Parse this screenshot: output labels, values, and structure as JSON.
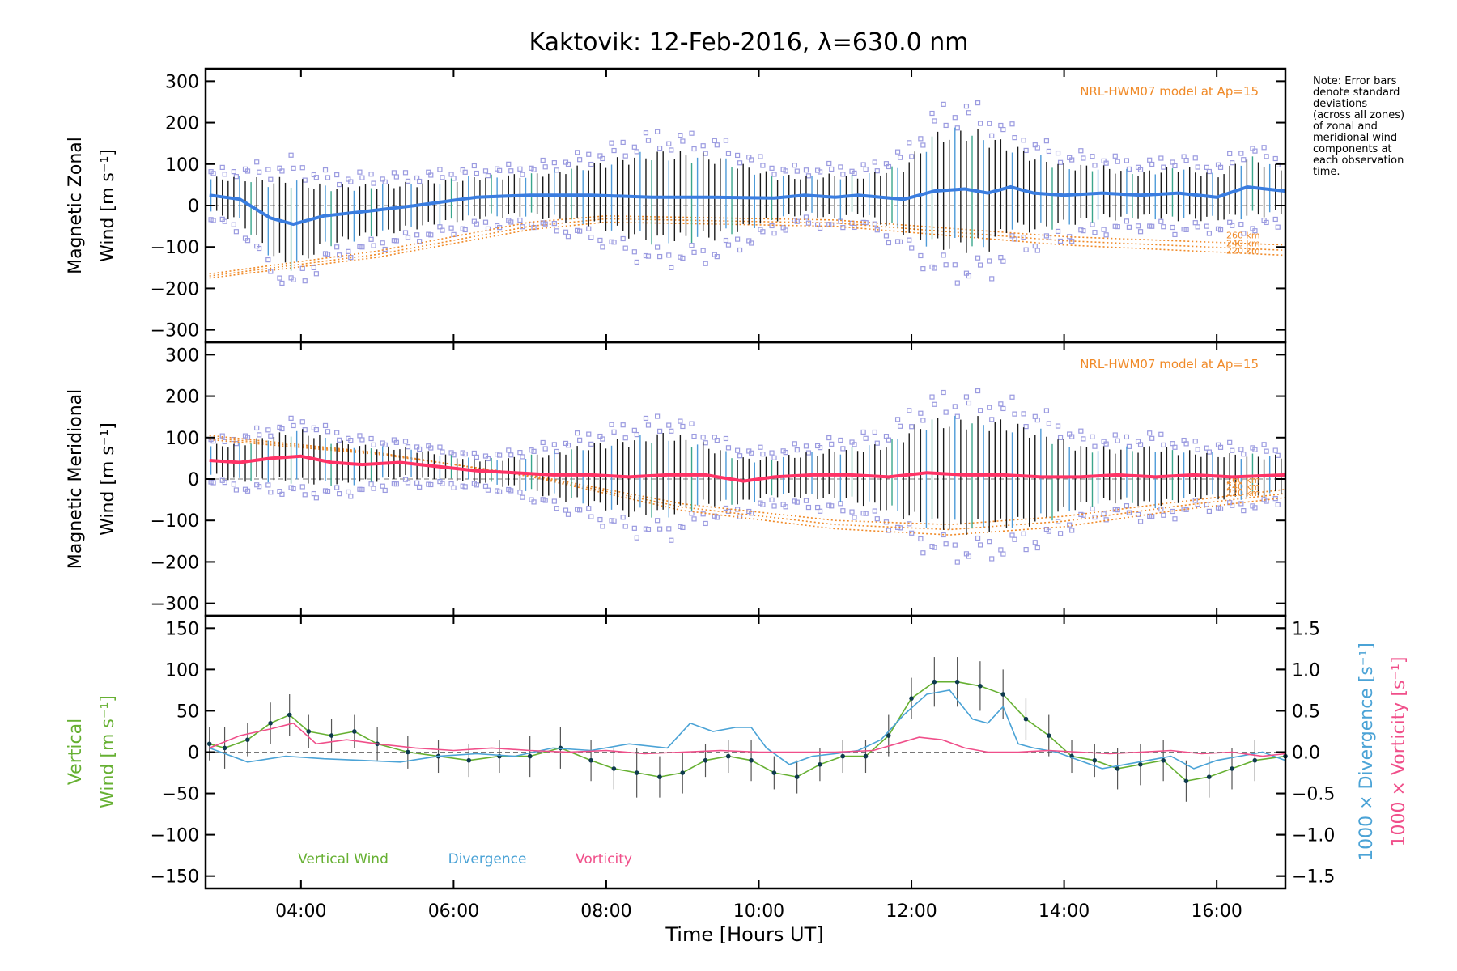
{
  "chart_data": {
    "type": "line",
    "title": "Kaktovik: 12-Feb-2016, λ=630.0 nm",
    "xlabel": "Time [Hours UT]",
    "x_ticks": [
      "04:00",
      "06:00",
      "08:00",
      "10:00",
      "12:00",
      "14:00",
      "16:00"
    ],
    "x_tick_hours": [
      4,
      6,
      8,
      10,
      12,
      14,
      16
    ],
    "xlim_hours": [
      2.75,
      16.9
    ],
    "note": [
      "Note: Error bars",
      "denote standard",
      "deviations",
      "(across all zones)",
      "of zonal and",
      "meridional wind",
      "components at",
      "each observation",
      "time."
    ],
    "colors": {
      "zonal_mean": "#3a7de0",
      "meridional_mean": "#ff3366",
      "vertical": "#66b032",
      "divergence": "#4ba3d6",
      "vorticity": "#f04f8a",
      "model": "#f08a28",
      "zone_points": "#9b9be0",
      "error_bars": "#1a1a1a"
    },
    "panels": [
      {
        "id": "zonal",
        "ylabel_line1": "Magnetic Zonal",
        "ylabel_line2": "Wind [m s⁻¹]",
        "ylim": [
          -330,
          330
        ],
        "y_ticks": [
          300,
          200,
          100,
          0,
          -100,
          -200,
          -300
        ],
        "model_label": "NRL-HWM07 model at Ap=15",
        "model_altitudes": [
          "260 km",
          "240 km",
          "220 km"
        ],
        "mean_series": {
          "x": [
            2.8,
            3.2,
            3.6,
            3.9,
            4.3,
            4.8,
            5.5,
            6.3,
            7.0,
            7.8,
            8.6,
            9.4,
            10.2,
            10.6,
            11.0,
            11.3,
            11.6,
            11.9,
            12.3,
            12.7,
            13.0,
            13.3,
            13.6,
            14.0,
            14.5,
            15.0,
            15.5,
            16.0,
            16.4,
            16.9
          ],
          "values": [
            25,
            15,
            -30,
            -45,
            -25,
            -15,
            0,
            20,
            25,
            25,
            20,
            20,
            18,
            25,
            20,
            25,
            20,
            15,
            35,
            40,
            30,
            45,
            30,
            25,
            30,
            25,
            30,
            20,
            45,
            35
          ],
          "spread": [
            45,
            60,
            100,
            120,
            80,
            70,
            60,
            55,
            55,
            80,
            120,
            110,
            60,
            50,
            60,
            50,
            70,
            90,
            150,
            160,
            150,
            110,
            100,
            80,
            70,
            60,
            70,
            60,
            80,
            60
          ]
        },
        "model_series": [
          {
            "name": "260 km",
            "x": [
              2.8,
              5.0,
              7.0,
              8.0,
              11.0,
              14.0,
              16.9
            ],
            "values": [
              -165,
              -110,
              -40,
              -25,
              -35,
              -75,
              -95
            ]
          },
          {
            "name": "240 km",
            "x": [
              2.8,
              5.0,
              7.0,
              8.0,
              11.0,
              14.0,
              16.9
            ],
            "values": [
              -170,
              -118,
              -50,
              -32,
              -42,
              -85,
              -108
            ]
          },
          {
            "name": "220 km",
            "x": [
              2.8,
              5.0,
              7.0,
              8.0,
              11.0,
              14.0,
              16.9
            ],
            "values": [
              -175,
              -125,
              -58,
              -40,
              -50,
              -95,
              -120
            ]
          }
        ]
      },
      {
        "id": "meridional",
        "ylabel_line1": "Magnetic Meridional",
        "ylabel_line2": "Wind [m s⁻¹]",
        "ylim": [
          -330,
          330
        ],
        "y_ticks": [
          300,
          200,
          100,
          0,
          -100,
          -200,
          -300
        ],
        "model_label": "NRL-HWM07 model at Ap=15",
        "model_altitudes": [
          "260 km",
          "240 km",
          "220 km"
        ],
        "mean_series": {
          "x": [
            2.8,
            3.2,
            3.6,
            4.0,
            4.4,
            4.8,
            5.3,
            5.8,
            6.3,
            6.8,
            7.3,
            7.8,
            8.3,
            8.8,
            9.3,
            9.8,
            10.2,
            10.7,
            11.2,
            11.7,
            12.2,
            12.7,
            13.2,
            13.7,
            14.2,
            14.7,
            15.2,
            15.7,
            16.2,
            16.9
          ],
          "values": [
            45,
            40,
            50,
            55,
            40,
            35,
            40,
            30,
            20,
            15,
            10,
            10,
            5,
            10,
            10,
            -5,
            5,
            10,
            10,
            5,
            15,
            10,
            10,
            5,
            5,
            10,
            5,
            10,
            5,
            10
          ],
          "spread": [
            40,
            50,
            60,
            70,
            60,
            50,
            40,
            35,
            30,
            40,
            60,
            80,
            100,
            110,
            80,
            60,
            50,
            60,
            70,
            90,
            140,
            150,
            140,
            120,
            80,
            70,
            80,
            60,
            60,
            50
          ]
        },
        "model_series": [
          {
            "name": "260 km",
            "x": [
              2.8,
              5.0,
              7.0,
              9.0,
              11.0,
              12.5,
              14.0,
              15.5,
              16.9
            ],
            "values": [
              95,
              60,
              10,
              -60,
              -100,
              -110,
              -90,
              -55,
              -25
            ]
          },
          {
            "name": "240 km",
            "x": [
              2.8,
              5.0,
              7.0,
              9.0,
              11.0,
              12.5,
              14.0,
              15.5,
              16.9
            ],
            "values": [
              100,
              62,
              8,
              -68,
              -110,
              -122,
              -102,
              -65,
              -35
            ]
          },
          {
            "name": "220 km",
            "x": [
              2.8,
              5.0,
              7.0,
              9.0,
              11.0,
              12.5,
              14.0,
              15.5,
              16.9
            ],
            "values": [
              105,
              64,
              6,
              -76,
              -120,
              -135,
              -115,
              -75,
              -45
            ]
          }
        ]
      },
      {
        "id": "vertical",
        "ylabel_line1": "Vertical",
        "ylabel_line2": "Wind [m s⁻¹]",
        "ylim": [
          -165,
          165
        ],
        "y_ticks": [
          150,
          100,
          50,
          0,
          -50,
          -100,
          -150
        ],
        "right_axis": {
          "ylim": [
            -1.65,
            1.65
          ],
          "y_ticks": [
            "1.5",
            "1.0",
            "0.5",
            "0.0",
            "−0.5",
            "−1.0",
            "−1.5"
          ],
          "y_tick_values": [
            1.5,
            1.0,
            0.5,
            0.0,
            -0.5,
            -1.0,
            -1.5
          ],
          "label_divergence": "1000 × Divergence [s⁻¹]",
          "label_vorticity": "1000 × Vorticity [s⁻¹]"
        },
        "legend": [
          "Vertical Wind",
          "Divergence",
          "Vorticity"
        ],
        "vertical_wind": {
          "x": [
            2.8,
            3.0,
            3.3,
            3.6,
            3.85,
            4.1,
            4.4,
            4.7,
            5.0,
            5.4,
            5.8,
            6.2,
            6.6,
            7.0,
            7.4,
            7.8,
            8.1,
            8.4,
            8.7,
            9.0,
            9.3,
            9.6,
            9.9,
            10.2,
            10.5,
            10.8,
            11.1,
            11.4,
            11.7,
            12.0,
            12.3,
            12.6,
            12.9,
            13.2,
            13.5,
            13.8,
            14.1,
            14.4,
            14.7,
            15.0,
            15.3,
            15.6,
            15.9,
            16.2,
            16.5,
            16.9
          ],
          "values": [
            10,
            5,
            15,
            35,
            45,
            25,
            20,
            25,
            10,
            0,
            -5,
            -10,
            -5,
            -5,
            5,
            -10,
            -20,
            -25,
            -30,
            -25,
            -10,
            -5,
            -10,
            -25,
            -30,
            -15,
            -5,
            -5,
            20,
            65,
            85,
            85,
            80,
            70,
            40,
            20,
            -5,
            -10,
            -20,
            -15,
            -10,
            -35,
            -30,
            -20,
            -10,
            -5
          ],
          "error": [
            20,
            25,
            20,
            25,
            25,
            20,
            20,
            20,
            20,
            20,
            20,
            20,
            20,
            25,
            25,
            25,
            25,
            30,
            25,
            25,
            20,
            20,
            25,
            20,
            20,
            20,
            20,
            20,
            25,
            25,
            30,
            30,
            30,
            30,
            25,
            25,
            20,
            20,
            25,
            25,
            25,
            25,
            25,
            25,
            25,
            25
          ]
        },
        "divergence": {
          "x": [
            2.8,
            3.3,
            3.8,
            4.3,
            4.8,
            5.3,
            5.8,
            6.3,
            6.8,
            7.3,
            7.8,
            8.3,
            8.8,
            9.1,
            9.4,
            9.7,
            9.9,
            10.1,
            10.4,
            10.7,
            11.0,
            11.3,
            11.6,
            11.9,
            12.2,
            12.5,
            12.8,
            13.0,
            13.2,
            13.4,
            13.6,
            13.9,
            14.2,
            14.5,
            14.8,
            15.1,
            15.4,
            15.7,
            16.0,
            16.3,
            16.6,
            16.9
          ],
          "values": [
            0.05,
            -0.12,
            -0.05,
            -0.08,
            -0.1,
            -0.12,
            -0.05,
            -0.02,
            -0.05,
            0.05,
            0.02,
            0.1,
            0.05,
            0.35,
            0.25,
            0.3,
            0.3,
            0.05,
            -0.15,
            -0.05,
            -0.02,
            0.02,
            0.15,
            0.45,
            0.7,
            0.75,
            0.4,
            0.35,
            0.55,
            0.1,
            0.05,
            0.0,
            -0.1,
            -0.2,
            -0.15,
            -0.1,
            -0.05,
            -0.2,
            -0.1,
            -0.05,
            0.0,
            -0.1
          ]
        },
        "vorticity": {
          "x": [
            2.8,
            3.2,
            3.6,
            3.9,
            4.2,
            4.6,
            5.0,
            5.5,
            6.0,
            6.5,
            7.0,
            7.5,
            8.0,
            8.5,
            9.0,
            9.5,
            10.0,
            10.5,
            11.0,
            11.5,
            11.8,
            12.1,
            12.4,
            12.7,
            13.0,
            13.4,
            13.8,
            14.2,
            14.6,
            15.0,
            15.4,
            15.8,
            16.2,
            16.6,
            16.9
          ],
          "values": [
            0.05,
            0.2,
            0.28,
            0.35,
            0.1,
            0.15,
            0.1,
            0.05,
            0.02,
            0.05,
            0.02,
            0.0,
            0.02,
            -0.02,
            0.0,
            0.02,
            0.0,
            0.0,
            0.0,
            0.02,
            0.1,
            0.18,
            0.15,
            0.05,
            0.0,
            0.0,
            0.02,
            0.0,
            -0.02,
            0.0,
            0.02,
            -0.02,
            0.0,
            -0.05,
            -0.02
          ]
        }
      }
    ]
  }
}
